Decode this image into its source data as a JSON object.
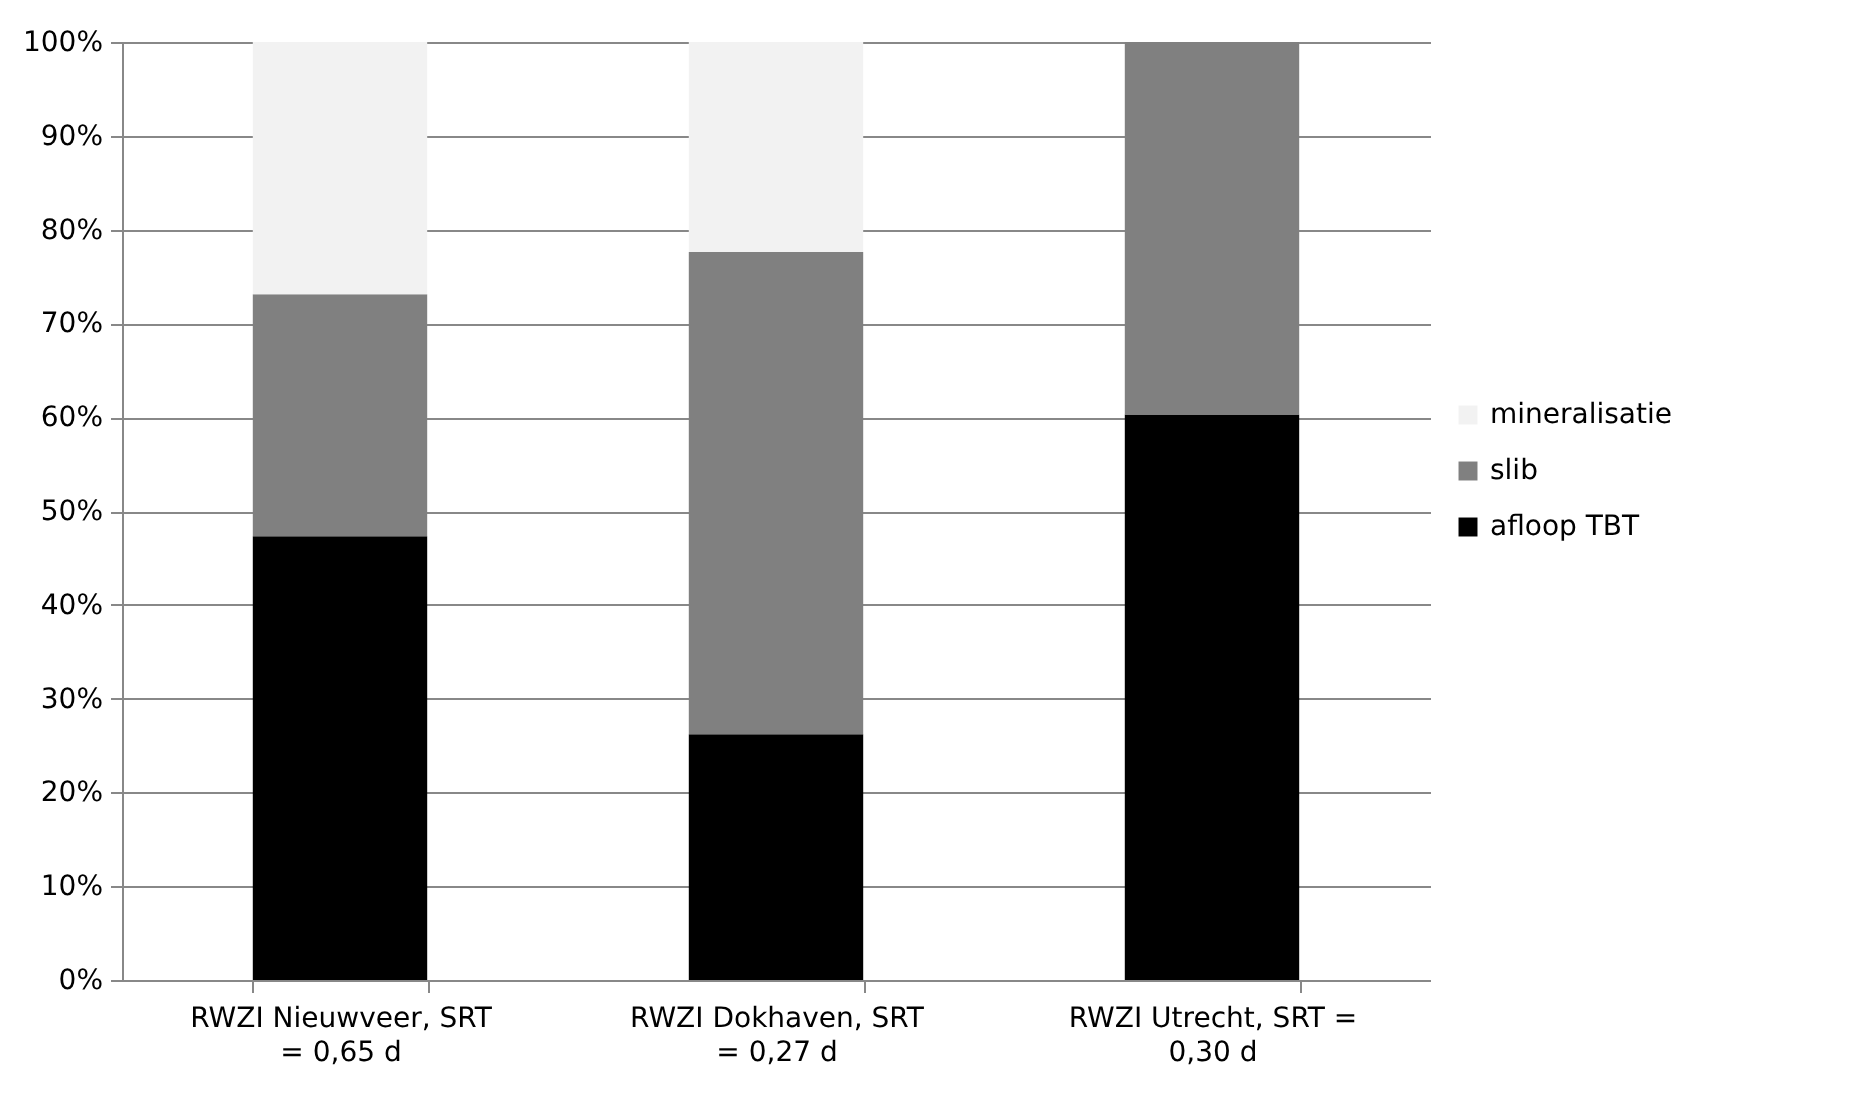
{
  "chart_data": {
    "type": "bar",
    "stacked": true,
    "categories": [
      "RWZI Nieuwveer, SRT = 0,65 d",
      "RWZI Dokhaven, SRT = 0,27 d",
      "RWZI Utrecht, SRT = 0,30 d"
    ],
    "series": [
      {
        "name": "afloop TBT",
        "color": "#000000",
        "values": [
          47.3,
          26.2,
          60.3
        ]
      },
      {
        "name": "slib",
        "color": "#808080",
        "values": [
          25.8,
          51.4,
          39.7
        ]
      },
      {
        "name": "mineralisatie",
        "color": "#f2f2f2",
        "values": [
          26.9,
          22.4,
          0
        ]
      }
    ],
    "ylim": [
      0,
      100
    ],
    "yticks": [
      {
        "value": 0,
        "label": "0%"
      },
      {
        "value": 10,
        "label": "10%"
      },
      {
        "value": 20,
        "label": "20%"
      },
      {
        "value": 30,
        "label": "30%"
      },
      {
        "value": 40,
        "label": "40%"
      },
      {
        "value": 50,
        "label": "50%"
      },
      {
        "value": 60,
        "label": "60%"
      },
      {
        "value": 70,
        "label": "70%"
      },
      {
        "value": 80,
        "label": "80%"
      },
      {
        "value": 90,
        "label": "90%"
      },
      {
        "value": 100,
        "label": "100%"
      }
    ],
    "grid": "y",
    "legend": "right"
  }
}
